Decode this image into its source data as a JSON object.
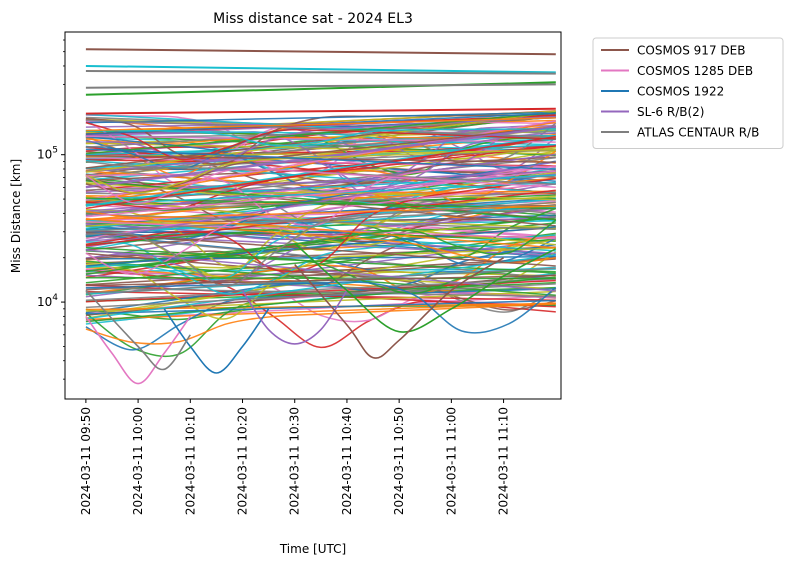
{
  "chart_data": {
    "type": "line",
    "title": "Miss distance sat - 2024 EL3",
    "xlabel": "Time [UTC]",
    "ylabel": "Miss Distance [km]",
    "yscale": "log",
    "ylim": [
      2200,
      680000
    ],
    "xlim": [
      "2024-03-11 09:46",
      "2024-03-11 11:21"
    ],
    "x_ticks": [
      "2024-03-11 09:50",
      "2024-03-11 10:00",
      "2024-03-11 10:10",
      "2024-03-11 10:20",
      "2024-03-11 10:30",
      "2024-03-11 10:40",
      "2024-03-11 10:50",
      "2024-03-11 11:00",
      "2024-03-11 11:10"
    ],
    "y_ticks": [
      "10^4",
      "10^5"
    ],
    "y_tick_values": [
      10000,
      100000
    ],
    "grid": false,
    "legend_position": "outside top-right",
    "legend": [
      {
        "name": "COSMOS 917 DEB",
        "color": "#8c564b"
      },
      {
        "name": "COSMOS 1285 DEB",
        "color": "#e377c2"
      },
      {
        "name": "COSMOS 1922",
        "color": "#1f77b4"
      },
      {
        "name": "SL-6 R/B(2)",
        "color": "#9467bd"
      },
      {
        "name": "ATLAS CENTAUR R/B",
        "color": "#7f7f7f"
      }
    ],
    "series": [
      {
        "name": "COSMOS 917 DEB",
        "color": "#8c564b",
        "x": [
          "2024-03-11 09:50",
          "2024-03-11 11:20"
        ],
        "y": [
          520000,
          480000
        ]
      },
      {
        "name": "COSMOS 1285 DEB",
        "color": "#e377c2",
        "x": [
          "2024-03-11 09:50",
          "2024-03-11 09:55",
          "2024-03-11 10:00",
          "2024-03-11 10:05",
          "2024-03-11 10:10"
        ],
        "y": [
          8000,
          4500,
          2800,
          4500,
          8000
        ]
      },
      {
        "name": "COSMOS 1922",
        "color": "#1f77b4",
        "x": [
          "2024-03-11 10:05",
          "2024-03-11 10:10",
          "2024-03-11 10:15",
          "2024-03-11 10:20",
          "2024-03-11 10:25"
        ],
        "y": [
          9000,
          5000,
          3300,
          5000,
          9000
        ]
      },
      {
        "name": "SL-6 R/B(2)",
        "color": "#9467bd",
        "x": [
          "2024-03-11 10:20",
          "2024-03-11 10:25",
          "2024-03-11 10:30",
          "2024-03-11 10:35",
          "2024-03-11 10:40"
        ],
        "y": [
          12000,
          6500,
          5200,
          6500,
          12000
        ]
      },
      {
        "name": "ATLAS CENTAUR R/B",
        "color": "#7f7f7f",
        "x": [
          "2024-03-11 09:50",
          "2024-03-11 10:00",
          "2024-03-11 10:05",
          "2024-03-11 10:10"
        ],
        "y": [
          12000,
          5000,
          3500,
          6000
        ]
      },
      {
        "color": "#17becf",
        "x": [
          "2024-03-11 09:50",
          "2024-03-11 11:20"
        ],
        "y": [
          400000,
          362000
        ]
      },
      {
        "color": "#7f7f7f",
        "x": [
          "2024-03-11 09:50",
          "2024-03-11 11:20"
        ],
        "y": [
          370000,
          355000
        ]
      },
      {
        "color": "#2ca02c",
        "x": [
          "2024-03-11 09:50",
          "2024-03-11 11:20"
        ],
        "y": [
          255000,
          310000
        ]
      },
      {
        "color": "#7f7f7f",
        "x": [
          "2024-03-11 09:50",
          "2024-03-11 11:20"
        ],
        "y": [
          285000,
          300000
        ]
      },
      {
        "color": "#d62728",
        "x": [
          "2024-03-11 09:50",
          "2024-03-11 11:20"
        ],
        "y": [
          190000,
          205000
        ]
      },
      {
        "color": "#2ca02c",
        "x": [
          "2024-03-11 10:30",
          "2024-03-11 10:40",
          "2024-03-11 10:50",
          "2024-03-11 11:00",
          "2024-03-11 11:10",
          "2024-03-11 11:20"
        ],
        "y": [
          25000,
          12000,
          6300,
          9000,
          15000,
          23000
        ]
      },
      {
        "color": "#8c564b",
        "x": [
          "2024-03-11 10:30",
          "2024-03-11 10:40",
          "2024-03-11 10:45",
          "2024-03-11 10:50",
          "2024-03-11 11:00",
          "2024-03-11 11:10"
        ],
        "y": [
          18000,
          7000,
          4200,
          5500,
          12000,
          20000
        ]
      }
    ]
  }
}
